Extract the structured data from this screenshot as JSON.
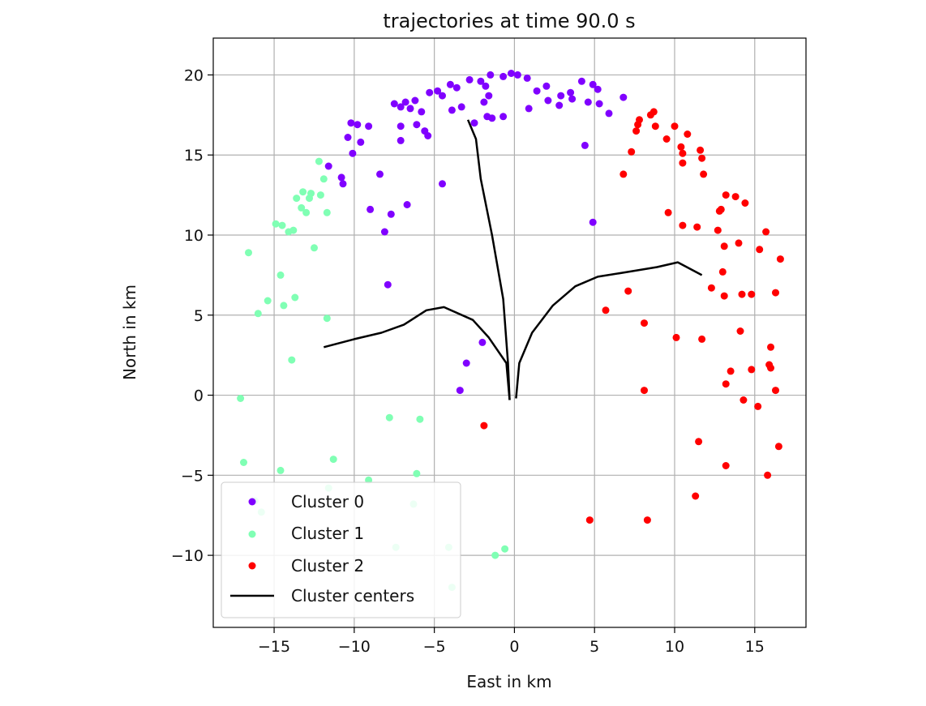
{
  "chart_data": {
    "type": "scatter",
    "title": "trajectories at time 90.0 s",
    "xlabel": "East in km",
    "ylabel": "North in km",
    "xlim": [
      -18.8,
      18.2
    ],
    "ylim": [
      -14.5,
      22.3
    ],
    "xticks": [
      -15,
      -10,
      -5,
      0,
      5,
      10,
      15
    ],
    "yticks": [
      -10,
      -5,
      0,
      5,
      10,
      15,
      20
    ],
    "xtick_labels": [
      "−15",
      "−10",
      "−5",
      "0",
      "5",
      "10",
      "15"
    ],
    "ytick_labels": [
      "−10",
      "−5",
      "0",
      "5",
      "10",
      "15",
      "20"
    ],
    "grid": true,
    "legend_position": "lower-left",
    "series": [
      {
        "name": "Cluster 0",
        "color": "#8000ff",
        "points": [
          [
            -0.2,
            20.1
          ],
          [
            0.2,
            20.0
          ],
          [
            -0.7,
            19.9
          ],
          [
            0.8,
            19.8
          ],
          [
            -1.5,
            20.0
          ],
          [
            -2.1,
            19.6
          ],
          [
            -1.8,
            19.3
          ],
          [
            -2.8,
            19.7
          ],
          [
            -3.6,
            19.2
          ],
          [
            -4.0,
            19.4
          ],
          [
            -4.8,
            19.0
          ],
          [
            -5.3,
            18.9
          ],
          [
            -6.2,
            18.4
          ],
          [
            -6.8,
            18.3
          ],
          [
            -7.1,
            18.0
          ],
          [
            -7.5,
            18.2
          ],
          [
            -6.5,
            17.9
          ],
          [
            -5.8,
            17.7
          ],
          [
            -4.5,
            18.7
          ],
          [
            -3.3,
            18.0
          ],
          [
            -1.6,
            18.7
          ],
          [
            -1.9,
            18.3
          ],
          [
            -2.5,
            17.0
          ],
          [
            -1.7,
            17.4
          ],
          [
            -0.7,
            17.4
          ],
          [
            1.4,
            19.0
          ],
          [
            2.0,
            19.3
          ],
          [
            2.9,
            18.7
          ],
          [
            2.8,
            18.1
          ],
          [
            2.1,
            18.4
          ],
          [
            3.5,
            18.9
          ],
          [
            4.2,
            19.6
          ],
          [
            4.9,
            19.4
          ],
          [
            5.2,
            19.1
          ],
          [
            5.3,
            18.2
          ],
          [
            4.6,
            18.3
          ],
          [
            6.8,
            18.6
          ],
          [
            5.9,
            17.6
          ],
          [
            3.6,
            18.5
          ],
          [
            0.9,
            17.9
          ],
          [
            -1.4,
            17.3
          ],
          [
            -3.9,
            17.8
          ],
          [
            -6.1,
            16.9
          ],
          [
            -5.4,
            16.2
          ],
          [
            -7.1,
            16.8
          ],
          [
            -9.1,
            16.8
          ],
          [
            -9.8,
            16.9
          ],
          [
            -10.2,
            17.0
          ],
          [
            -10.4,
            16.1
          ],
          [
            -9.6,
            15.8
          ],
          [
            -10.1,
            15.1
          ],
          [
            -7.1,
            15.9
          ],
          [
            -5.6,
            16.5
          ],
          [
            -11.6,
            14.3
          ],
          [
            -10.8,
            13.6
          ],
          [
            -10.7,
            13.2
          ],
          [
            -8.4,
            13.8
          ],
          [
            -4.5,
            13.2
          ],
          [
            4.4,
            15.6
          ],
          [
            -9.0,
            11.6
          ],
          [
            -6.7,
            11.9
          ],
          [
            -7.7,
            11.3
          ],
          [
            -8.1,
            10.2
          ],
          [
            4.9,
            10.8
          ],
          [
            -7.9,
            6.9
          ],
          [
            -2.0,
            3.3
          ],
          [
            -3.0,
            2.0
          ],
          [
            -3.4,
            0.3
          ]
        ]
      },
      {
        "name": "Cluster 1",
        "color": "#80ffb4",
        "points": [
          [
            -12.2,
            14.6
          ],
          [
            -11.9,
            13.5
          ],
          [
            -12.7,
            12.6
          ],
          [
            -13.2,
            12.7
          ],
          [
            -12.8,
            12.3
          ],
          [
            -12.1,
            12.5
          ],
          [
            -13.6,
            12.3
          ],
          [
            -13.3,
            11.7
          ],
          [
            -13.0,
            11.4
          ],
          [
            -11.7,
            11.4
          ],
          [
            -14.1,
            10.2
          ],
          [
            -14.5,
            10.6
          ],
          [
            -14.9,
            10.7
          ],
          [
            -13.8,
            10.3
          ],
          [
            -12.5,
            9.2
          ],
          [
            -16.6,
            8.9
          ],
          [
            -14.6,
            7.5
          ],
          [
            -15.4,
            5.9
          ],
          [
            -16.0,
            5.1
          ],
          [
            -14.4,
            5.6
          ],
          [
            -13.7,
            6.1
          ],
          [
            -11.7,
            4.8
          ],
          [
            -13.9,
            2.2
          ],
          [
            -17.1,
            -0.2
          ],
          [
            -7.8,
            -1.4
          ],
          [
            -5.9,
            -1.5
          ],
          [
            -11.3,
            -4.0
          ],
          [
            -16.9,
            -4.2
          ],
          [
            -14.6,
            -4.7
          ],
          [
            -6.1,
            -4.9
          ],
          [
            -9.1,
            -5.3
          ],
          [
            -11.6,
            -5.8
          ],
          [
            -16.2,
            -6.6
          ],
          [
            -15.8,
            -7.3
          ],
          [
            -6.3,
            -6.8
          ],
          [
            -7.4,
            -9.5
          ],
          [
            -4.1,
            -9.5
          ],
          [
            -1.2,
            -10.0
          ],
          [
            -0.6,
            -9.6
          ],
          [
            -3.9,
            -12.0
          ]
        ]
      },
      {
        "name": "Cluster 2",
        "color": "#ff0000",
        "points": [
          [
            8.5,
            17.5
          ],
          [
            8.7,
            17.7
          ],
          [
            7.8,
            17.2
          ],
          [
            7.7,
            16.9
          ],
          [
            10.0,
            16.8
          ],
          [
            10.8,
            16.3
          ],
          [
            7.6,
            16.5
          ],
          [
            8.8,
            16.8
          ],
          [
            9.5,
            16.0
          ],
          [
            10.4,
            15.5
          ],
          [
            10.5,
            15.1
          ],
          [
            11.6,
            15.3
          ],
          [
            11.7,
            14.8
          ],
          [
            7.3,
            15.2
          ],
          [
            10.5,
            14.5
          ],
          [
            6.8,
            13.8
          ],
          [
            11.8,
            13.8
          ],
          [
            13.2,
            12.5
          ],
          [
            13.8,
            12.4
          ],
          [
            14.4,
            12.0
          ],
          [
            12.9,
            11.6
          ],
          [
            12.8,
            11.5
          ],
          [
            9.6,
            11.4
          ],
          [
            10.5,
            10.6
          ],
          [
            11.4,
            10.5
          ],
          [
            12.7,
            10.3
          ],
          [
            15.7,
            10.2
          ],
          [
            14.0,
            9.5
          ],
          [
            13.1,
            9.3
          ],
          [
            15.3,
            9.1
          ],
          [
            16.6,
            8.5
          ],
          [
            13.0,
            7.7
          ],
          [
            12.3,
            6.7
          ],
          [
            7.1,
            6.5
          ],
          [
            13.1,
            6.2
          ],
          [
            14.2,
            6.3
          ],
          [
            14.8,
            6.3
          ],
          [
            16.3,
            6.4
          ],
          [
            5.7,
            5.3
          ],
          [
            8.1,
            4.5
          ],
          [
            14.1,
            4.0
          ],
          [
            10.1,
            3.6
          ],
          [
            11.7,
            3.5
          ],
          [
            16.0,
            3.0
          ],
          [
            13.5,
            1.5
          ],
          [
            14.8,
            1.6
          ],
          [
            15.9,
            1.9
          ],
          [
            16.0,
            1.7
          ],
          [
            13.2,
            0.7
          ],
          [
            8.1,
            0.3
          ],
          [
            16.3,
            0.3
          ],
          [
            14.3,
            -0.3
          ],
          [
            15.2,
            -0.7
          ],
          [
            -1.9,
            -1.9
          ],
          [
            11.5,
            -2.9
          ],
          [
            16.5,
            -3.2
          ],
          [
            13.2,
            -4.4
          ],
          [
            15.8,
            -5.0
          ],
          [
            11.3,
            -6.3
          ],
          [
            4.7,
            -7.8
          ],
          [
            8.3,
            -7.8
          ]
        ]
      }
    ],
    "centers": {
      "name": "Cluster centers",
      "color": "#000000",
      "lines": [
        [
          [
            -0.3,
            -0.3
          ],
          [
            -0.4,
            2.0
          ],
          [
            -0.7,
            6.0
          ],
          [
            -1.4,
            10.0
          ],
          [
            -2.1,
            13.5
          ],
          [
            -2.4,
            16.0
          ],
          [
            -2.9,
            17.2
          ]
        ],
        [
          [
            -0.3,
            -0.3
          ],
          [
            -0.5,
            2.0
          ],
          [
            -1.6,
            3.6
          ],
          [
            -2.6,
            4.7
          ],
          [
            -4.4,
            5.5
          ],
          [
            -5.5,
            5.3
          ],
          [
            -6.9,
            4.4
          ],
          [
            -8.3,
            3.9
          ],
          [
            -10.0,
            3.5
          ],
          [
            -11.9,
            3.0
          ]
        ],
        [
          [
            0.1,
            -0.2
          ],
          [
            0.3,
            2.0
          ],
          [
            1.1,
            3.9
          ],
          [
            2.4,
            5.6
          ],
          [
            3.8,
            6.8
          ],
          [
            5.2,
            7.4
          ],
          [
            7.1,
            7.7
          ],
          [
            8.9,
            8.0
          ],
          [
            10.2,
            8.3
          ],
          [
            11.7,
            7.5
          ]
        ]
      ]
    }
  }
}
